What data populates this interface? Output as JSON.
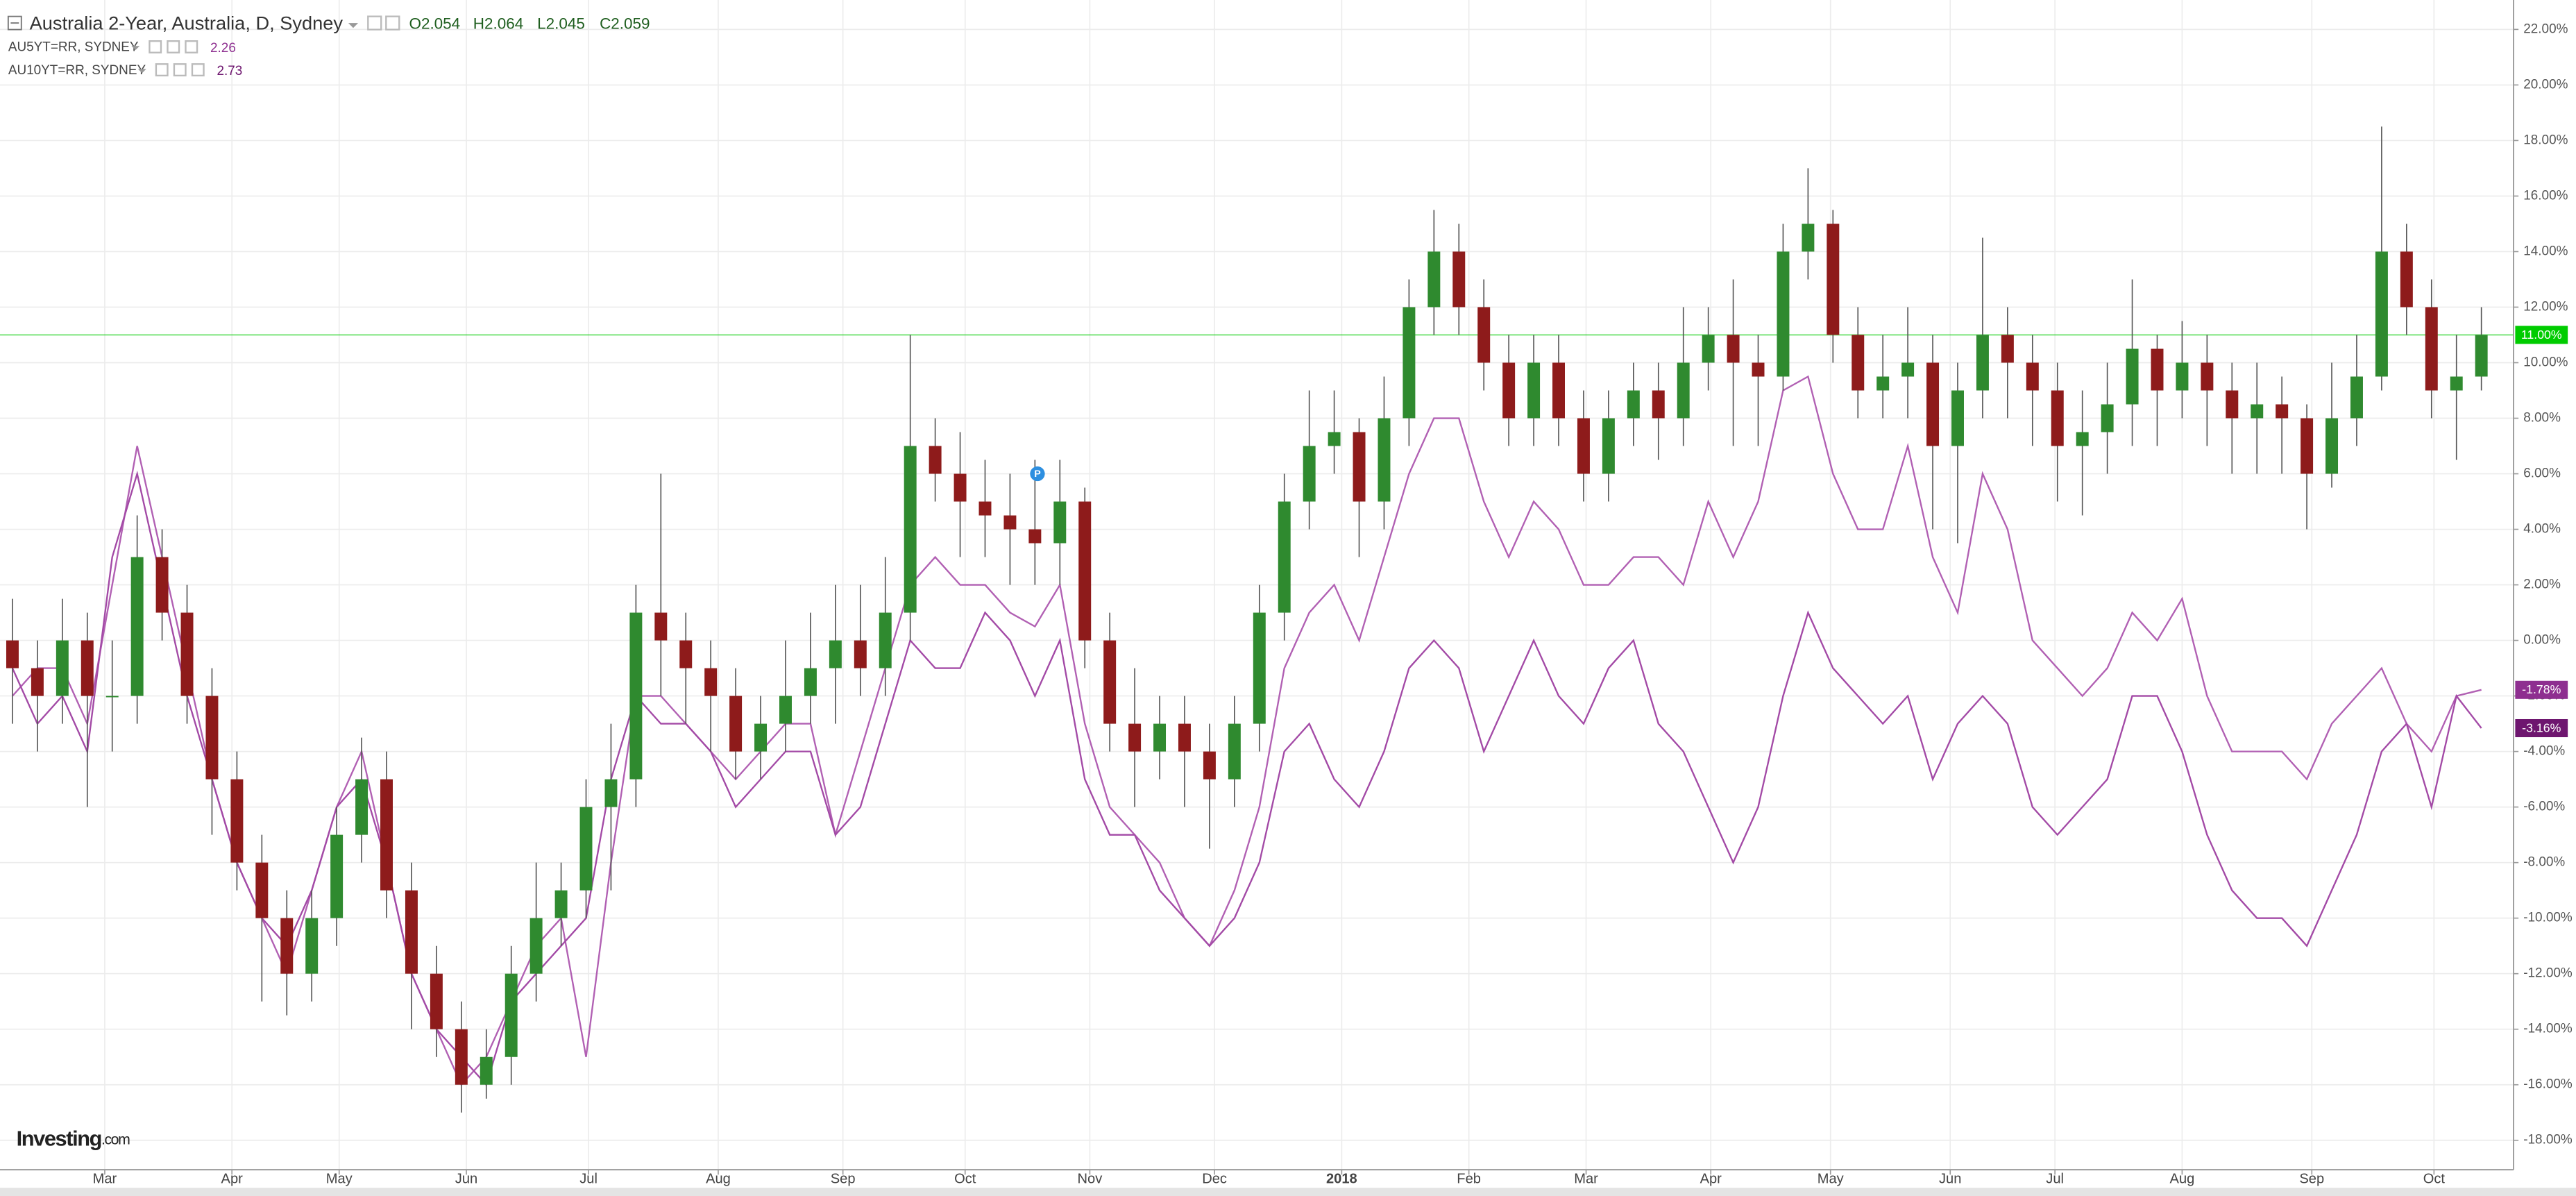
{
  "chart_data": {
    "type": "candlestick",
    "title": "Australia 2-Year, Australia, D, Sydney",
    "ohlc_labels": [
      "O2.054",
      "H2.064",
      "L2.045",
      "C2.059"
    ],
    "logo": "Investing",
    "logo_suffix": ".com",
    "grid": true,
    "xlim": [
      0,
      100
    ],
    "xticks": [
      {
        "value": 4.2,
        "label": "Mar"
      },
      {
        "value": 9.3,
        "label": "Apr"
      },
      {
        "value": 13.6,
        "label": "May"
      },
      {
        "value": 18.7,
        "label": "Jun"
      },
      {
        "value": 23.6,
        "label": "Jul"
      },
      {
        "value": 28.8,
        "label": "Aug"
      },
      {
        "value": 33.8,
        "label": "Sep"
      },
      {
        "value": 38.7,
        "label": "Oct"
      },
      {
        "value": 43.7,
        "label": "Nov"
      },
      {
        "value": 48.7,
        "label": "Dec"
      },
      {
        "value": 53.8,
        "label": "2018",
        "bold": true
      },
      {
        "value": 58.9,
        "label": "Feb"
      },
      {
        "value": 63.6,
        "label": "Mar"
      },
      {
        "value": 68.6,
        "label": "Apr"
      },
      {
        "value": 73.4,
        "label": "May"
      },
      {
        "value": 78.2,
        "label": "Jun"
      },
      {
        "value": 82.4,
        "label": "Jul"
      },
      {
        "value": 87.5,
        "label": "Aug"
      },
      {
        "value": 92.7,
        "label": "Sep"
      },
      {
        "value": 97.6,
        "label": "Oct"
      }
    ],
    "ylim": [
      -19,
      23
    ],
    "yticks": [
      {
        "value": 22,
        "label": "22.00%"
      },
      {
        "value": 20,
        "label": "20.00%"
      },
      {
        "value": 18,
        "label": "18.00%"
      },
      {
        "value": 16,
        "label": "16.00%"
      },
      {
        "value": 14,
        "label": "14.00%"
      },
      {
        "value": 12,
        "label": "12.00%"
      },
      {
        "value": 10,
        "label": "10.00%"
      },
      {
        "value": 8,
        "label": "8.00%"
      },
      {
        "value": 6,
        "label": "6.00%"
      },
      {
        "value": 4,
        "label": "4.00%"
      },
      {
        "value": 2,
        "label": "2.00%"
      },
      {
        "value": 0,
        "label": "0.00%"
      },
      {
        "value": -2,
        "label": "-2.00%"
      },
      {
        "value": -4,
        "label": "-4.00%"
      },
      {
        "value": -6,
        "label": "-6.00%"
      },
      {
        "value": -8,
        "label": "-8.00%"
      },
      {
        "value": -10,
        "label": "-10.00%"
      },
      {
        "value": -12,
        "label": "-12.00%"
      },
      {
        "value": -14,
        "label": "-14.00%"
      },
      {
        "value": -16,
        "label": "-16.00%"
      },
      {
        "value": -18,
        "label": "-18.00%"
      }
    ],
    "candles": {
      "up_color": "#2f8a2f",
      "down_color": "#8e1b1b",
      "open": [
        0,
        -1,
        -2,
        0,
        -2,
        -2,
        3,
        1,
        -2,
        -5,
        -8,
        -10,
        -12,
        -10,
        -7,
        -5,
        -9,
        -12,
        -14,
        -16,
        -15,
        -12,
        -10,
        -9,
        -6,
        -5,
        1,
        0,
        -1,
        -2,
        -4,
        -3,
        -2,
        -1,
        0,
        -1,
        1,
        7,
        6,
        5,
        4.5,
        4,
        3.5,
        5,
        0,
        -3,
        -4,
        -3,
        -4,
        -5,
        -3,
        1,
        5,
        7,
        7.5,
        5,
        8,
        12,
        14,
        12,
        10,
        8,
        10,
        8,
        6,
        8,
        9,
        8,
        10,
        11,
        10,
        9.5,
        14,
        15,
        11,
        9,
        9.5,
        10,
        7,
        9,
        11,
        10,
        9,
        7,
        7.5,
        8.5,
        10.5,
        9,
        10,
        9,
        8,
        8.5,
        8,
        6,
        8,
        9.5,
        14,
        12,
        9,
        9.5
      ],
      "high": [
        1.5,
        0,
        1.5,
        1,
        0,
        4.5,
        4,
        2,
        -1,
        -4,
        -7,
        -9,
        -9,
        -6,
        -3.5,
        -4,
        -8,
        -11,
        -13,
        -14,
        -11,
        -8,
        -8,
        -5,
        -3,
        2,
        6,
        1,
        0,
        -1,
        -2,
        0,
        1,
        2,
        2,
        3,
        11,
        8,
        7.5,
        6.5,
        6,
        6.5,
        6.5,
        5.5,
        1,
        -1,
        -2,
        -2,
        -3,
        -2,
        2,
        6,
        9,
        9,
        8,
        9.5,
        13,
        15.5,
        15,
        13,
        11,
        11,
        11,
        9,
        9,
        10,
        10,
        12,
        12,
        13,
        11,
        15,
        17,
        15.5,
        12,
        11,
        12,
        11,
        10,
        14.5,
        12,
        11,
        10,
        9,
        10,
        13,
        11,
        11.5,
        11,
        10,
        10,
        9.5,
        8.5,
        10,
        11,
        18.5,
        15,
        13,
        11,
        12
      ],
      "low": [
        -3,
        -4,
        -3,
        -6,
        -4,
        -3,
        0,
        -3,
        -7,
        -9,
        -13,
        -13.5,
        -13,
        -11,
        -8,
        -10,
        -14,
        -15,
        -17,
        -16.5,
        -16,
        -13,
        -11,
        -10,
        -9,
        -6,
        -2,
        -3,
        -4,
        -5,
        -5,
        -4,
        -3,
        -3,
        -2,
        -2,
        0,
        5,
        3,
        3,
        2,
        2,
        2,
        -1,
        -4,
        -6,
        -5,
        -6,
        -7.5,
        -6,
        -4,
        0,
        4,
        6,
        3,
        4,
        7,
        11,
        11,
        9,
        7,
        7,
        7,
        5,
        5,
        7,
        6.5,
        7,
        9,
        7,
        7,
        9,
        13,
        10,
        8,
        8,
        8,
        4,
        3.5,
        8,
        8,
        7,
        5,
        4.5,
        6,
        7,
        7,
        8,
        7,
        6,
        6,
        6,
        4,
        5.5,
        7,
        9,
        11,
        8,
        6.5,
        9
      ],
      "close": [
        -1,
        -2,
        0,
        -2,
        -2,
        3,
        1,
        -2,
        -5,
        -8,
        -10,
        -12,
        -10,
        -7,
        -5,
        -9,
        -12,
        -14,
        -16,
        -15,
        -12,
        -10,
        -9,
        -6,
        -5,
        1,
        0,
        -1,
        -2,
        -4,
        -3,
        -2,
        -1,
        0,
        -1,
        1,
        7,
        6,
        5,
        4.5,
        4,
        3.5,
        5,
        0,
        -3,
        -4,
        -3,
        -4,
        -5,
        -3,
        1,
        5,
        7,
        7.5,
        5,
        8,
        12,
        14,
        12,
        10,
        8,
        10,
        8,
        6,
        8,
        9,
        8,
        10,
        11,
        10,
        9.5,
        14,
        15,
        11,
        9,
        9.5,
        10,
        7,
        9,
        11,
        10,
        9,
        7,
        7.5,
        8.5,
        10.5,
        9,
        10,
        9,
        8,
        8.5,
        8,
        6,
        8,
        9.5,
        14,
        12,
        9,
        9.5,
        11
      ]
    },
    "series": [
      {
        "name": "AU5YT=RR, SYDNEY",
        "legend_value": "2.26",
        "color": "#b160b3",
        "label_color": "#8e2f90",
        "last_label": "-1.78%",
        "values": [
          -2,
          -1,
          -1,
          -3,
          2,
          7,
          3,
          -1,
          -5,
          -8,
          -10,
          -12,
          -9,
          -6,
          -4,
          -8,
          -12,
          -14,
          -16,
          -15,
          -13,
          -11,
          -10,
          -15,
          -8,
          -2,
          -2,
          -3,
          -4,
          -5,
          -4,
          -3,
          -3,
          -7,
          -4,
          -1,
          2,
          3,
          2,
          2,
          1,
          0.5,
          2,
          -3,
          -6,
          -7,
          -8,
          -10,
          -11,
          -9,
          -6,
          -1,
          1,
          2,
          0,
          3,
          6,
          8,
          8,
          5,
          3,
          5,
          4,
          2,
          2,
          3,
          3,
          2,
          5,
          3,
          5,
          9,
          9.5,
          6,
          4,
          4,
          7,
          3,
          1,
          6,
          4,
          0,
          -1,
          -2,
          -1,
          1,
          0,
          1.5,
          -2,
          -4,
          -4,
          -4,
          -5,
          -3,
          -2,
          -1,
          -3,
          -4,
          -2,
          -1.78
        ]
      },
      {
        "name": "AU10YT=RR, SYDNEY",
        "legend_value": "2.73",
        "color": "#a34aa6",
        "label_color": "#6e166f",
        "last_label": "-3.16%",
        "values": [
          -1,
          -3,
          -2,
          -4,
          3,
          6,
          2,
          -2,
          -5,
          -8,
          -10,
          -11,
          -9,
          -6,
          -5,
          -8,
          -12,
          -14,
          -15,
          -16,
          -13,
          -12,
          -11,
          -10,
          -5,
          -2,
          -3,
          -3,
          -4,
          -6,
          -5,
          -4,
          -4,
          -7,
          -6,
          -3,
          0,
          -1,
          -1,
          1,
          0,
          -2,
          0,
          -5,
          -7,
          -7,
          -9,
          -10,
          -11,
          -10,
          -8,
          -4,
          -3,
          -5,
          -6,
          -4,
          -1,
          0,
          -1,
          -4,
          -2,
          0,
          -2,
          -3,
          -1,
          0,
          -3,
          -4,
          -6,
          -8,
          -6,
          -2,
          1,
          -1,
          -2,
          -3,
          -2,
          -5,
          -3,
          -2,
          -3,
          -6,
          -7,
          -6,
          -5,
          -2,
          -2,
          -4,
          -7,
          -9,
          -10,
          -10,
          -11,
          -9,
          -7,
          -4,
          -3,
          -6,
          -2,
          -3.16
        ]
      }
    ],
    "price_line": {
      "value": 11,
      "label": "11.00%",
      "color": "#00cc00"
    },
    "annotation": {
      "label": "P",
      "x": 41.6,
      "y": 6,
      "color": "#2d8fe0"
    }
  }
}
